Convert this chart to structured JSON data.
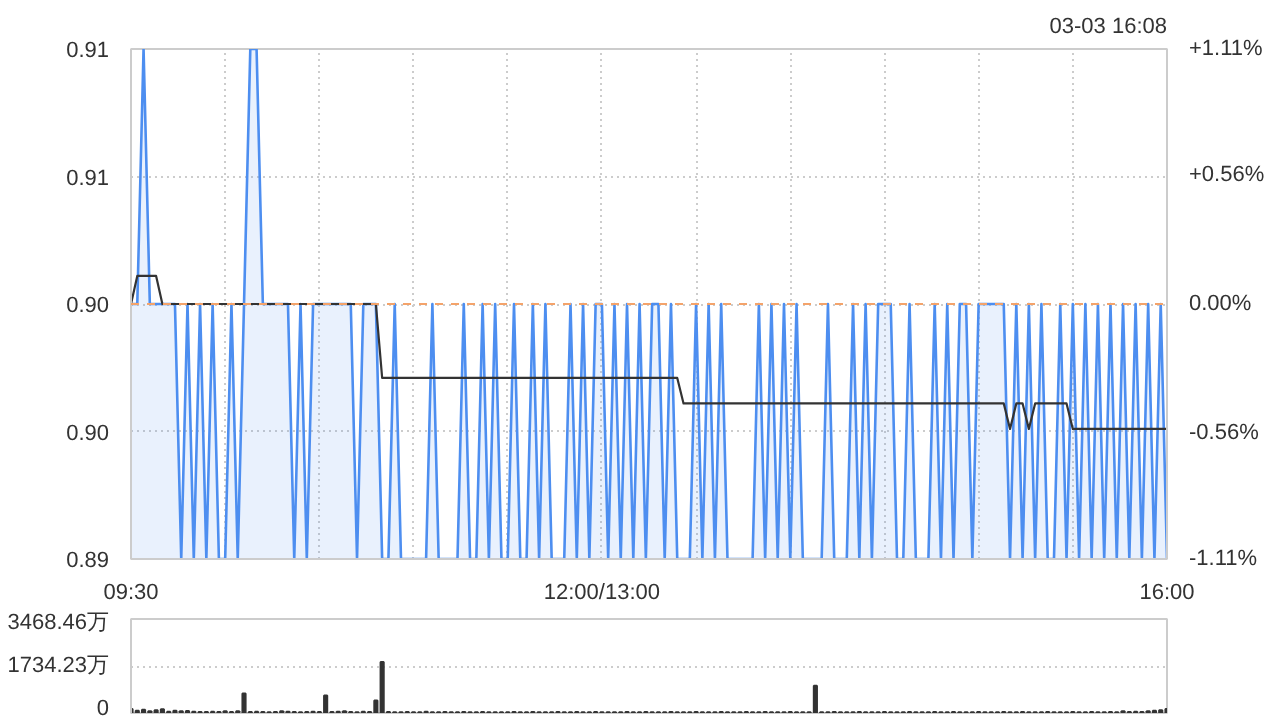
{
  "chart_data": [
    {
      "type": "area",
      "annotations": [
        "03-03 16:08"
      ],
      "categories": [
        "09:30",
        null,
        null,
        null,
        null,
        null,
        null,
        null,
        null,
        null,
        null,
        null,
        null,
        null,
        null,
        null,
        null,
        null,
        null,
        null,
        null,
        null,
        null,
        null,
        null,
        null,
        null,
        null,
        null,
        null,
        null,
        null,
        null,
        null,
        null,
        null,
        null,
        null,
        null,
        null,
        null,
        null,
        null,
        null,
        null,
        null,
        null,
        null,
        null,
        null,
        null,
        null,
        null,
        null,
        null,
        null,
        null,
        null,
        null,
        null,
        null,
        null,
        null,
        null,
        null,
        null,
        null,
        null,
        null,
        null,
        null,
        null,
        null,
        null,
        null,
        "12:00/13:00",
        null,
        null,
        null,
        null,
        null,
        null,
        null,
        null,
        null,
        null,
        null,
        null,
        null,
        null,
        null,
        null,
        null,
        null,
        null,
        null,
        null,
        null,
        null,
        null,
        null,
        null,
        null,
        null,
        null,
        null,
        null,
        null,
        null,
        null,
        null,
        null,
        null,
        null,
        null,
        null,
        null,
        null,
        null,
        null,
        null,
        null,
        null,
        null,
        null,
        null,
        null,
        null,
        null,
        null,
        null,
        null,
        null,
        null,
        null,
        null,
        null,
        null,
        null,
        null,
        null,
        null,
        null,
        null,
        null,
        null,
        null,
        null,
        null,
        null,
        null,
        null,
        null,
        null,
        null,
        null,
        null,
        null,
        null,
        null,
        null,
        null,
        null,
        null,
        null,
        "16:00"
      ],
      "ylim": [
        0.89,
        0.91
      ],
      "yticks": [
        0.89,
        {
          "value": 0.895,
          "label": "0.90"
        },
        {
          "value": 0.9,
          "label": "0.90"
        },
        {
          "value": 0.905,
          "label": "0.91"
        },
        0.91
      ],
      "y2lim": [
        -1.11,
        1.11
      ],
      "y2ticks": [
        {
          "value": -1.11,
          "label": "-1.11%"
        },
        {
          "value": -0.56,
          "label": "-0.56%"
        },
        {
          "value": 0,
          "label": "0.00%"
        },
        {
          "value": 0.56,
          "label": "+0.56%"
        },
        {
          "value": 1.11,
          "label": "+1.11%"
        }
      ],
      "grid": true,
      "ref_lines": [
        {
          "axis": "y",
          "value": 0.9,
          "color": "#f4a36a",
          "line_style": "dashed"
        }
      ],
      "series": [
        {
          "type": "area",
          "color": "#4d8ef0",
          "values": [
            0.9,
            0.9,
            0.91,
            0.9,
            0.9,
            0.9,
            0.9,
            0.9,
            0.89,
            0.9,
            0.89,
            0.9,
            0.89,
            0.9,
            0.89,
            0.89,
            0.9,
            0.89,
            0.9,
            0.91,
            0.91,
            0.9,
            0.9,
            0.9,
            0.9,
            0.9,
            0.89,
            0.9,
            0.89,
            0.9,
            0.9,
            0.9,
            0.9,
            0.9,
            0.9,
            0.9,
            0.89,
            0.9,
            0.9,
            0.9,
            0.89,
            0.89,
            0.9,
            0.89,
            0.89,
            0.89,
            0.89,
            0.89,
            0.9,
            0.89,
            0.89,
            0.89,
            0.89,
            0.9,
            0.89,
            0.89,
            0.9,
            0.89,
            0.9,
            0.89,
            0.89,
            0.9,
            0.89,
            0.89,
            0.9,
            0.89,
            0.9,
            0.89,
            0.89,
            0.89,
            0.9,
            0.89,
            0.9,
            0.89,
            0.9,
            0.9,
            0.89,
            0.9,
            0.89,
            0.9,
            0.89,
            0.9,
            0.89,
            0.9,
            0.9,
            0.89,
            0.9,
            0.89,
            0.89,
            0.89,
            0.9,
            0.89,
            0.9,
            0.89,
            0.9,
            0.89,
            0.89,
            0.89,
            0.89,
            0.89,
            0.9,
            0.89,
            0.9,
            0.89,
            0.9,
            0.89,
            0.9,
            0.89,
            0.89,
            0.89,
            0.89,
            0.9,
            0.89,
            0.89,
            0.89,
            0.9,
            0.89,
            0.9,
            0.89,
            0.9,
            0.9,
            0.9,
            0.89,
            0.89,
            0.9,
            0.89,
            0.89,
            0.89,
            0.9,
            0.89,
            0.9,
            0.89,
            0.9,
            0.9,
            0.89,
            0.9,
            0.9,
            0.9,
            0.9,
            0.9,
            0.89,
            0.9,
            0.89,
            0.9,
            0.89,
            0.9,
            0.89,
            0.89,
            0.9,
            0.89,
            0.9,
            0.89,
            0.9,
            0.89,
            0.9,
            0.89,
            0.9,
            0.89,
            0.9,
            0.89,
            0.9,
            0.89,
            0.9,
            0.89,
            0.9,
            0.89
          ]
        },
        {
          "type": "line",
          "color": "#333333",
          "values": [
            0.9,
            0.9011,
            0.9011,
            0.9011,
            0.9011,
            0.9,
            0.9,
            0.9,
            0.9,
            0.9,
            0.9,
            0.9,
            0.9,
            0.9,
            0.9,
            0.9,
            0.9,
            0.9,
            0.9,
            0.9,
            0.9,
            0.9,
            0.9,
            0.9,
            0.9,
            0.9,
            0.9,
            0.9,
            0.9,
            0.9,
            0.9,
            0.9,
            0.9,
            0.9,
            0.9,
            0.9,
            0.9,
            0.9,
            0.9,
            0.9,
            0.8971,
            0.8971,
            0.8971,
            0.8971,
            0.8971,
            0.8971,
            0.8971,
            0.8971,
            0.8971,
            0.8971,
            0.8971,
            0.8971,
            0.8971,
            0.8971,
            0.8971,
            0.8971,
            0.8971,
            0.8971,
            0.8971,
            0.8971,
            0.8971,
            0.8971,
            0.8971,
            0.8971,
            0.8971,
            0.8971,
            0.8971,
            0.8971,
            0.8971,
            0.8971,
            0.8971,
            0.8971,
            0.8971,
            0.8971,
            0.8971,
            0.8971,
            0.8971,
            0.8971,
            0.8971,
            0.8971,
            0.8971,
            0.8971,
            0.8971,
            0.8971,
            0.8971,
            0.8971,
            0.8971,
            0.8971,
            0.8961,
            0.8961,
            0.8961,
            0.8961,
            0.8961,
            0.8961,
            0.8961,
            0.8961,
            0.8961,
            0.8961,
            0.8961,
            0.8961,
            0.8961,
            0.8961,
            0.8961,
            0.8961,
            0.8961,
            0.8961,
            0.8961,
            0.8961,
            0.8961,
            0.8961,
            0.8961,
            0.8961,
            0.8961,
            0.8961,
            0.8961,
            0.8961,
            0.8961,
            0.8961,
            0.8961,
            0.8961,
            0.8961,
            0.8961,
            0.8961,
            0.8961,
            0.8961,
            0.8961,
            0.8961,
            0.8961,
            0.8961,
            0.8961,
            0.8961,
            0.8961,
            0.8961,
            0.8961,
            0.8961,
            0.8961,
            0.8961,
            0.8961,
            0.8961,
            0.8961,
            0.8951,
            0.8961,
            0.8961,
            0.8951,
            0.8961,
            0.8961,
            0.8961,
            0.8961,
            0.8961,
            0.8961,
            0.8951,
            0.8951,
            0.8951,
            0.8951,
            0.8951,
            0.8951,
            0.8951,
            0.8951,
            0.8951,
            0.8951,
            0.8951,
            0.8951,
            0.8951,
            0.8951,
            0.8951,
            0.8951
          ]
        }
      ]
    },
    {
      "type": "bar",
      "color": "#333333",
      "tick_labels": "y",
      "grid": "y",
      "categories": [
        null,
        null,
        null,
        null,
        null,
        null,
        null,
        null,
        null,
        null,
        null,
        null,
        null,
        null,
        null,
        null,
        null,
        null,
        null,
        null,
        null,
        null,
        null,
        null,
        null,
        null,
        null,
        null,
        null,
        null,
        null,
        null,
        null,
        null,
        null,
        null,
        null,
        null,
        null,
        null,
        null,
        null,
        null,
        null,
        null,
        null,
        null,
        null,
        null,
        null,
        null,
        null,
        null,
        null,
        null,
        null,
        null,
        null,
        null,
        null,
        null,
        null,
        null,
        null,
        null,
        null,
        null,
        null,
        null,
        null,
        null,
        null,
        null,
        null,
        null,
        null,
        null,
        null,
        null,
        null,
        null,
        null,
        null,
        null,
        null,
        null,
        null,
        null,
        null,
        null,
        null,
        null,
        null,
        null,
        null,
        null,
        null,
        null,
        null,
        null,
        null,
        null,
        null,
        null,
        null,
        null,
        null,
        null,
        null,
        null,
        null,
        null,
        null,
        null,
        null,
        null,
        null,
        null,
        null,
        null,
        null,
        null,
        null,
        null,
        null,
        null,
        null,
        null,
        null,
        null,
        null,
        null,
        null,
        null,
        null,
        null,
        null,
        null,
        null,
        null,
        null,
        null,
        null,
        null,
        null,
        null,
        null,
        null,
        null,
        null,
        null,
        null,
        null,
        null,
        null,
        null,
        null,
        null,
        null,
        null,
        null,
        null,
        null,
        null,
        null,
        null
      ],
      "ylim": [
        0,
        3468.46
      ],
      "yticks": [
        0,
        {
          "value": 1734.23,
          "label": "1734.23万"
        },
        {
          "value": 3468.46,
          "label": "3468.46万"
        }
      ],
      "values": [
        150,
        80,
        120,
        60,
        100,
        140,
        50,
        80,
        60,
        70,
        50,
        40,
        40,
        50,
        40,
        60,
        40,
        60,
        720,
        40,
        50,
        40,
        30,
        40,
        60,
        50,
        40,
        30,
        40,
        50,
        40,
        650,
        40,
        50,
        60,
        40,
        30,
        50,
        40,
        460,
        1880,
        40,
        30,
        30,
        40,
        30,
        30,
        50,
        30,
        30,
        40,
        30,
        30,
        40,
        30,
        30,
        40,
        30,
        30,
        30,
        30,
        40,
        30,
        30,
        40,
        30,
        30,
        30,
        40,
        30,
        30,
        40,
        30,
        30,
        40,
        30,
        30,
        30,
        30,
        40,
        30,
        30,
        40,
        30,
        30,
        30,
        40,
        30,
        30,
        30,
        40,
        30,
        30,
        30,
        40,
        30,
        30,
        30,
        40,
        30,
        30,
        40,
        30,
        30,
        30,
        40,
        30,
        30,
        30,
        1010,
        30,
        30,
        40,
        30,
        30,
        30,
        40,
        30,
        30,
        30,
        40,
        30,
        30,
        30,
        40,
        30,
        30,
        30,
        40,
        30,
        30,
        40,
        30,
        30,
        30,
        40,
        30,
        30,
        30,
        40,
        30,
        30,
        40,
        30,
        30,
        30,
        40,
        30,
        30,
        30,
        40,
        30,
        30,
        40,
        30,
        30,
        40,
        30,
        60,
        40,
        50,
        40,
        60,
        80,
        100,
        150
      ]
    }
  ]
}
